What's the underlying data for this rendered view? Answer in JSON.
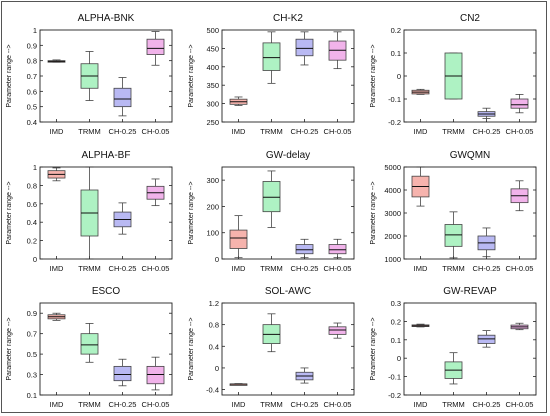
{
  "colors": {
    "IMD": "#f6b3ad",
    "TRMM": "#aef2c3",
    "CH-0.25": "#b9b9f3",
    "CH-0.05": "#f1b3ea",
    "stroke": "#444444",
    "median": "#111111"
  },
  "chart_data": [
    {
      "type": "box",
      "title": "ALPHA-BNK",
      "ylabel": "Parameter range -->",
      "categories": [
        "IMD",
        "TRMM",
        "CH-0.25",
        "CH-0.05"
      ],
      "ylim": [
        0.4,
        1.0
      ],
      "yticks": [
        0.4,
        0.5,
        0.6,
        0.7,
        0.8,
        0.9,
        1.0
      ],
      "ytick_labels": [
        "0.4",
        "0.5",
        "0.6",
        "0.7",
        "0.8",
        "0.9",
        "1"
      ],
      "boxes": [
        {
          "min": 0.79,
          "q1": 0.79,
          "median": 0.795,
          "q3": 0.8,
          "max": 0.805
        },
        {
          "min": 0.54,
          "q1": 0.62,
          "median": 0.7,
          "q3": 0.78,
          "max": 0.86
        },
        {
          "min": 0.44,
          "q1": 0.5,
          "median": 0.55,
          "q3": 0.62,
          "max": 0.69
        },
        {
          "min": 0.77,
          "q1": 0.84,
          "median": 0.88,
          "q3": 0.94,
          "max": 0.99
        }
      ]
    },
    {
      "type": "box",
      "title": "CH-K2",
      "ylabel": "Parameter range -->",
      "categories": [
        "IMD",
        "TRMM",
        "CH-0.25",
        "CH-0.05"
      ],
      "ylim": [
        250,
        500
      ],
      "yticks": [
        250,
        300,
        350,
        400,
        450,
        500
      ],
      "ytick_labels": [
        "250",
        "300",
        "350",
        "400",
        "450",
        "500"
      ],
      "boxes": [
        {
          "min": 295,
          "q1": 298,
          "median": 305,
          "q3": 312,
          "max": 318
        },
        {
          "min": 355,
          "q1": 390,
          "median": 425,
          "q3": 465,
          "max": 495
        },
        {
          "min": 405,
          "q1": 430,
          "median": 450,
          "q3": 475,
          "max": 495
        },
        {
          "min": 395,
          "q1": 418,
          "median": 445,
          "q3": 470,
          "max": 495
        }
      ]
    },
    {
      "type": "box",
      "title": "CN2",
      "ylabel": "Parameter range -->",
      "categories": [
        "IMD",
        "TRMM",
        "CH-0.25",
        "CH-0.05"
      ],
      "ylim": [
        -0.2,
        0.2
      ],
      "yticks": [
        -0.2,
        -0.1,
        0.0,
        0.1,
        0.2
      ],
      "ytick_labels": [
        "-0.2",
        "-0.1",
        "0",
        "0.1",
        "0.2"
      ],
      "boxes": [
        {
          "min": -0.08,
          "q1": -0.078,
          "median": -0.07,
          "q3": -0.062,
          "max": -0.058
        },
        {
          "min": -0.1,
          "q1": -0.1,
          "median": 0.0,
          "q3": 0.1,
          "max": 0.1
        },
        {
          "min": -0.185,
          "q1": -0.175,
          "median": -0.165,
          "q3": -0.155,
          "max": -0.14
        },
        {
          "min": -0.16,
          "q1": -0.14,
          "median": -0.125,
          "q3": -0.1,
          "max": -0.08
        }
      ]
    },
    {
      "type": "box",
      "title": "ALPHA-BF",
      "ylabel": "Parameter range -->",
      "categories": [
        "IMD",
        "TRMM",
        "CH-0.25",
        "CH-0.05"
      ],
      "ylim": [
        0.0,
        1.0
      ],
      "yticks": [
        0.0,
        0.2,
        0.4,
        0.6,
        0.8,
        1.0
      ],
      "ytick_labels": [
        "0",
        "0.2",
        "0.4",
        "0.6",
        "0.8",
        "1"
      ],
      "boxes": [
        {
          "min": 0.85,
          "q1": 0.88,
          "median": 0.92,
          "q3": 0.96,
          "max": 0.99
        },
        {
          "min": 0.0,
          "q1": 0.25,
          "median": 0.5,
          "q3": 0.75,
          "max": 1.0
        },
        {
          "min": 0.27,
          "q1": 0.35,
          "median": 0.43,
          "q3": 0.51,
          "max": 0.61
        },
        {
          "min": 0.58,
          "q1": 0.65,
          "median": 0.72,
          "q3": 0.79,
          "max": 0.87
        }
      ]
    },
    {
      "type": "box",
      "title": "GW-delay",
      "ylabel": "Parameter range -->",
      "categories": [
        "IMD",
        "TRMM",
        "CH-0.25",
        "CH-0.05"
      ],
      "ylim": [
        0,
        350
      ],
      "yticks": [
        0,
        100,
        200,
        300
      ],
      "ytick_labels": [
        "0",
        "100",
        "200",
        "300"
      ],
      "boxes": [
        {
          "min": 5,
          "q1": 40,
          "median": 80,
          "q3": 110,
          "max": 165
        },
        {
          "min": 120,
          "q1": 180,
          "median": 235,
          "q3": 295,
          "max": 335
        },
        {
          "min": 5,
          "q1": 20,
          "median": 35,
          "q3": 55,
          "max": 75
        },
        {
          "min": 5,
          "q1": 20,
          "median": 35,
          "q3": 55,
          "max": 75
        }
      ]
    },
    {
      "type": "box",
      "title": "GWQMN",
      "ylabel": "Parameter range -->",
      "categories": [
        "IMD",
        "TRMM",
        "CH-0.25",
        "CH-0.05"
      ],
      "ylim": [
        1000,
        5000
      ],
      "yticks": [
        1000,
        2000,
        3000,
        4000,
        5000
      ],
      "ytick_labels": [
        "1000",
        "2000",
        "3000",
        "4000",
        "5000"
      ],
      "boxes": [
        {
          "min": 3300,
          "q1": 3700,
          "median": 4150,
          "q3": 4600,
          "max": 5000
        },
        {
          "min": 1050,
          "q1": 1550,
          "median": 2050,
          "q3": 2500,
          "max": 3050
        },
        {
          "min": 1100,
          "q1": 1400,
          "median": 1700,
          "q3": 2000,
          "max": 2350
        },
        {
          "min": 3100,
          "q1": 3450,
          "median": 3750,
          "q3": 4050,
          "max": 4400
        }
      ]
    },
    {
      "type": "box",
      "title": "ESCO",
      "ylabel": "Parameter range -->",
      "categories": [
        "IMD",
        "TRMM",
        "CH-0.25",
        "CH-0.05"
      ],
      "ylim": [
        0.1,
        1.0
      ],
      "yticks": [
        0.1,
        0.3,
        0.5,
        0.7,
        0.9
      ],
      "ytick_labels": [
        "0.1",
        "0.3",
        "0.5",
        "0.7",
        "0.9"
      ],
      "boxes": [
        {
          "min": 0.83,
          "q1": 0.845,
          "median": 0.865,
          "q3": 0.885,
          "max": 0.9
        },
        {
          "min": 0.42,
          "q1": 0.5,
          "median": 0.59,
          "q3": 0.7,
          "max": 0.8
        },
        {
          "min": 0.19,
          "q1": 0.24,
          "median": 0.3,
          "q3": 0.38,
          "max": 0.45
        },
        {
          "min": 0.15,
          "q1": 0.21,
          "median": 0.3,
          "q3": 0.38,
          "max": 0.47
        }
      ]
    },
    {
      "type": "box",
      "title": "SOL-AWC",
      "ylabel": "Parameter range -->",
      "categories": [
        "IMD",
        "TRMM",
        "CH-0.25",
        "CH-0.05"
      ],
      "ylim": [
        -0.5,
        1.2
      ],
      "yticks": [
        -0.4,
        0.0,
        0.4,
        0.8,
        1.2
      ],
      "ytick_labels": [
        "-0.4",
        "0",
        "0.4",
        "0.8",
        "1.2"
      ],
      "boxes": [
        {
          "min": -0.31,
          "q1": -0.305,
          "median": -0.3,
          "q3": -0.295,
          "max": -0.29
        },
        {
          "min": 0.3,
          "q1": 0.45,
          "median": 0.62,
          "q3": 0.8,
          "max": 1.0
        },
        {
          "min": -0.28,
          "q1": -0.22,
          "median": -0.15,
          "q3": -0.08,
          "max": 0.0
        },
        {
          "min": 0.55,
          "q1": 0.62,
          "median": 0.7,
          "q3": 0.76,
          "max": 0.83
        }
      ]
    },
    {
      "type": "box",
      "title": "GW-REVAP",
      "ylabel": "Parameter range -->",
      "categories": [
        "IMD",
        "TRMM",
        "CH-0.25",
        "CH-0.05"
      ],
      "ylim": [
        -0.2,
        0.3
      ],
      "yticks": [
        -0.2,
        -0.1,
        0.0,
        0.1,
        0.2,
        0.3
      ],
      "ytick_labels": [
        "-0.2",
        "-0.1",
        "0",
        "0.1",
        "0.2",
        "0.3"
      ],
      "boxes": [
        {
          "min": 0.17,
          "q1": 0.172,
          "median": 0.176,
          "q3": 0.181,
          "max": 0.185
        },
        {
          "min": -0.14,
          "q1": -0.11,
          "median": -0.065,
          "q3": -0.02,
          "max": 0.03
        },
        {
          "min": 0.06,
          "q1": 0.08,
          "median": 0.105,
          "q3": 0.125,
          "max": 0.15
        },
        {
          "min": 0.155,
          "q1": 0.16,
          "median": 0.17,
          "q3": 0.18,
          "max": 0.19
        }
      ]
    }
  ]
}
